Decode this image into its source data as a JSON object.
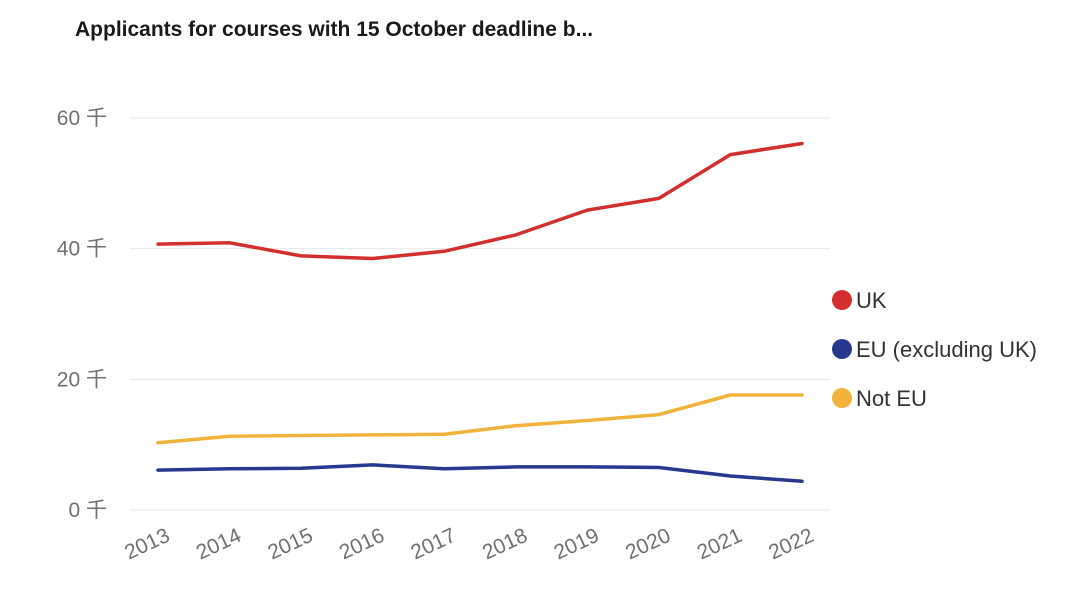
{
  "chart_data": {
    "type": "line",
    "title": "Applicants for courses with 15 October deadline b...",
    "xlabel": "",
    "ylabel": "",
    "x": [
      "2013",
      "2014",
      "2015",
      "2016",
      "2017",
      "2018",
      "2019",
      "2020",
      "2021",
      "2022"
    ],
    "y_ticks": [
      {
        "value": 0,
        "label": "0 千"
      },
      {
        "value": 20000,
        "label": "20 千"
      },
      {
        "value": 40000,
        "label": "40 千"
      },
      {
        "value": 60000,
        "label": "60 千"
      }
    ],
    "ylim": [
      0,
      60000
    ],
    "grid": true,
    "legend_position": "right",
    "series": [
      {
        "name": "UK",
        "color": "#d32f2f",
        "values": [
          40700,
          40900,
          38900,
          38500,
          39600,
          42100,
          45900,
          47700,
          54400,
          56100
        ]
      },
      {
        "name": "EU (excluding UK)",
        "color": "#26398f",
        "values": [
          6100,
          6300,
          6400,
          6900,
          6300,
          6600,
          6600,
          6500,
          5200,
          4400
        ]
      },
      {
        "name": "Not EU",
        "color": "#f2b33d",
        "values": [
          10300,
          11300,
          11400,
          11500,
          11600,
          12900,
          13700,
          14600,
          17600,
          17600
        ]
      }
    ]
  }
}
